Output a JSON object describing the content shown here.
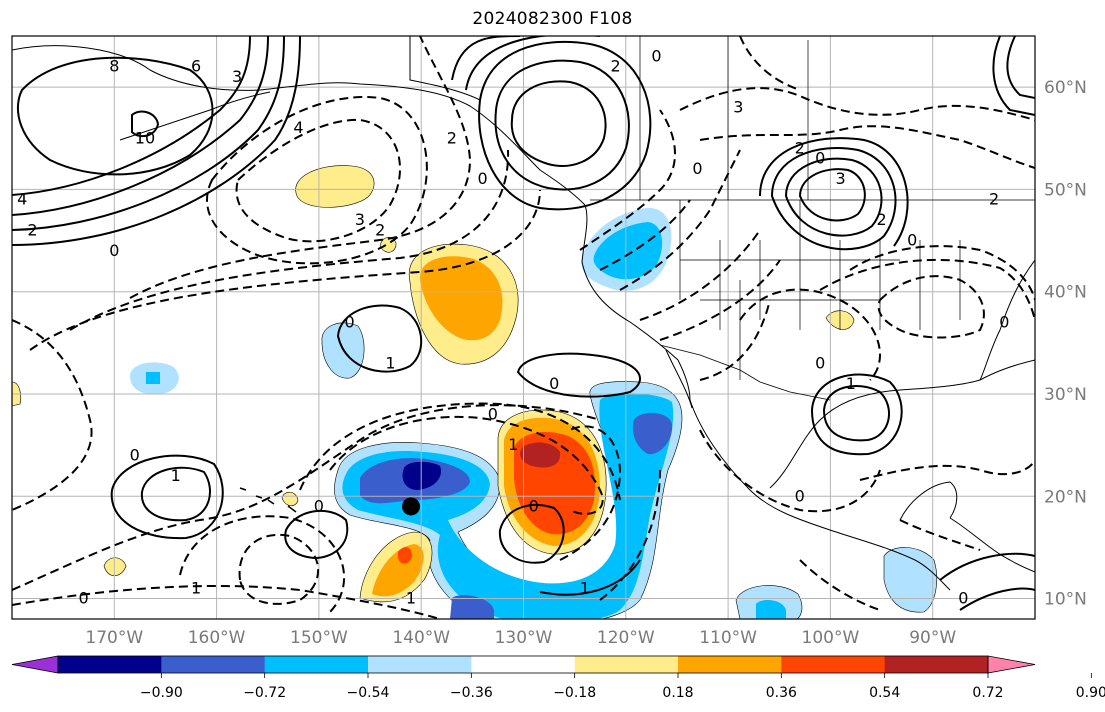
{
  "title": "2024082300 F108",
  "map": {
    "projection": "cylindrical",
    "lon_range": [
      -180,
      -80
    ],
    "lat_range": [
      8,
      65
    ],
    "lon_ticks": [
      {
        "lon": -170,
        "label": "170°W"
      },
      {
        "lon": -160,
        "label": "160°W"
      },
      {
        "lon": -150,
        "label": "150°W"
      },
      {
        "lon": -140,
        "label": "140°W"
      },
      {
        "lon": -130,
        "label": "130°W"
      },
      {
        "lon": -120,
        "label": "120°W"
      },
      {
        "lon": -110,
        "label": "110°W"
      },
      {
        "lon": -100,
        "label": "100°W"
      },
      {
        "lon": -90,
        "label": "90°W"
      }
    ],
    "lat_ticks": [
      {
        "lat": 60,
        "label": "60°N"
      },
      {
        "lat": 50,
        "label": "50°N"
      },
      {
        "lat": 40,
        "label": "40°N"
      },
      {
        "lat": 30,
        "label": "30°N"
      },
      {
        "lat": 20,
        "label": "20°N"
      },
      {
        "lat": 10,
        "label": "10°N"
      }
    ],
    "grid": true,
    "marker": {
      "name": "storm-center-marker",
      "lon": -141,
      "lat": 19
    }
  },
  "colorbar": {
    "levels": [
      "−0.90",
      "−0.72",
      "−0.54",
      "−0.36",
      "−0.18",
      "0.18",
      "0.36",
      "0.54",
      "0.72",
      "0.90"
    ],
    "colors": [
      "#9b30d9",
      "#00008b",
      "#3a5fcd",
      "#00bfff",
      "#b0e2ff",
      "#ffffff",
      "#ffec8b",
      "#ffa500",
      "#ff4500",
      "#b22222",
      "#ff82ab"
    ]
  },
  "contour_labels": [
    {
      "text": "8",
      "lon": -170,
      "lat": 62
    },
    {
      "text": "6",
      "lon": -162,
      "lat": 62
    },
    {
      "text": "3",
      "lon": -158,
      "lat": 61
    },
    {
      "text": "10",
      "lon": -167,
      "lat": 55
    },
    {
      "text": "4",
      "lon": -179,
      "lat": 49
    },
    {
      "text": "2",
      "lon": -178,
      "lat": 46
    },
    {
      "text": "0",
      "lon": -170,
      "lat": 44
    },
    {
      "text": "4",
      "lon": -152,
      "lat": 56
    },
    {
      "text": "3",
      "lon": -146,
      "lat": 47
    },
    {
      "text": "2",
      "lon": -144,
      "lat": 46
    },
    {
      "text": "2",
      "lon": -137,
      "lat": 55
    },
    {
      "text": "0",
      "lon": -134,
      "lat": 51
    },
    {
      "text": "2",
      "lon": -121,
      "lat": 62
    },
    {
      "text": "0",
      "lon": -117,
      "lat": 63
    },
    {
      "text": "3",
      "lon": -109,
      "lat": 58
    },
    {
      "text": "2",
      "lon": -103,
      "lat": 54
    },
    {
      "text": "0",
      "lon": -101,
      "lat": 53
    },
    {
      "text": "3",
      "lon": -99,
      "lat": 51
    },
    {
      "text": "2",
      "lon": -95,
      "lat": 47
    },
    {
      "text": "0",
      "lon": -92,
      "lat": 45
    },
    {
      "text": "2",
      "lon": -84,
      "lat": 49
    },
    {
      "text": "0",
      "lon": -147,
      "lat": 37
    },
    {
      "text": "1",
      "lon": -143,
      "lat": 33
    },
    {
      "text": "0",
      "lon": -127,
      "lat": 31
    },
    {
      "text": "0",
      "lon": -133,
      "lat": 28
    },
    {
      "text": "1",
      "lon": -131,
      "lat": 25
    },
    {
      "text": "0",
      "lon": -101,
      "lat": 33
    },
    {
      "text": "1",
      "lon": -98,
      "lat": 31
    },
    {
      "text": "0",
      "lon": -103,
      "lat": 20
    },
    {
      "text": "0",
      "lon": -168,
      "lat": 24
    },
    {
      "text": "1",
      "lon": -164,
      "lat": 22
    },
    {
      "text": "0",
      "lon": -150,
      "lat": 19
    },
    {
      "text": "0",
      "lon": -129,
      "lat": 19
    },
    {
      "text": "1",
      "lon": -162,
      "lat": 11
    },
    {
      "text": "0",
      "lon": -173,
      "lat": 10
    },
    {
      "text": "1",
      "lon": -141,
      "lat": 10
    },
    {
      "text": "1",
      "lon": -124,
      "lat": 11
    },
    {
      "text": "0",
      "lon": -87,
      "lat": 10
    },
    {
      "text": "0",
      "lon": -113,
      "lat": 52
    },
    {
      "text": "0",
      "lon": -83,
      "lat": 37
    }
  ]
}
